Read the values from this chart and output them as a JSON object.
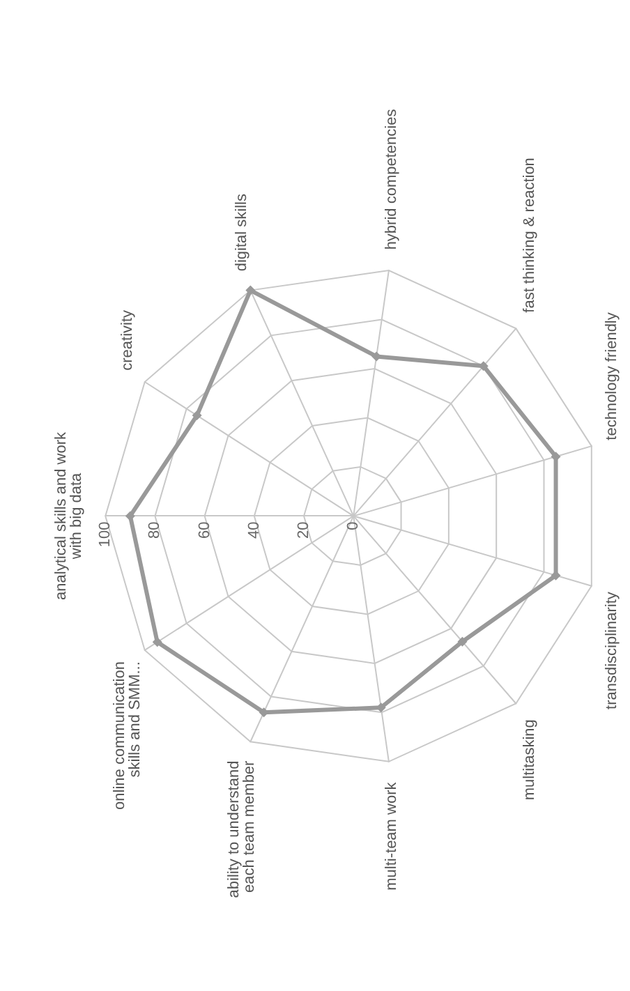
{
  "chart_data": {
    "type": "radar",
    "categories": [
      "analytical skills and work\nwith big data",
      "creativity",
      "digital skills",
      "hybrid competencies",
      "fast thinking & reaction",
      "technology friendly",
      "transdisciplinarity",
      "multitasking",
      "multi-team work",
      "ability to understand\neach team member",
      "online communication\nskills and SMM..."
    ],
    "series": [
      {
        "color": "#999999",
        "values": [
          90,
          75,
          100,
          65,
          80,
          85,
          85,
          67,
          78,
          87,
          94
        ]
      }
    ],
    "ylim": [
      0,
      100
    ],
    "yticks": [
      0,
      20,
      40,
      60,
      80,
      100
    ],
    "grid": true,
    "marker": "diamond"
  }
}
